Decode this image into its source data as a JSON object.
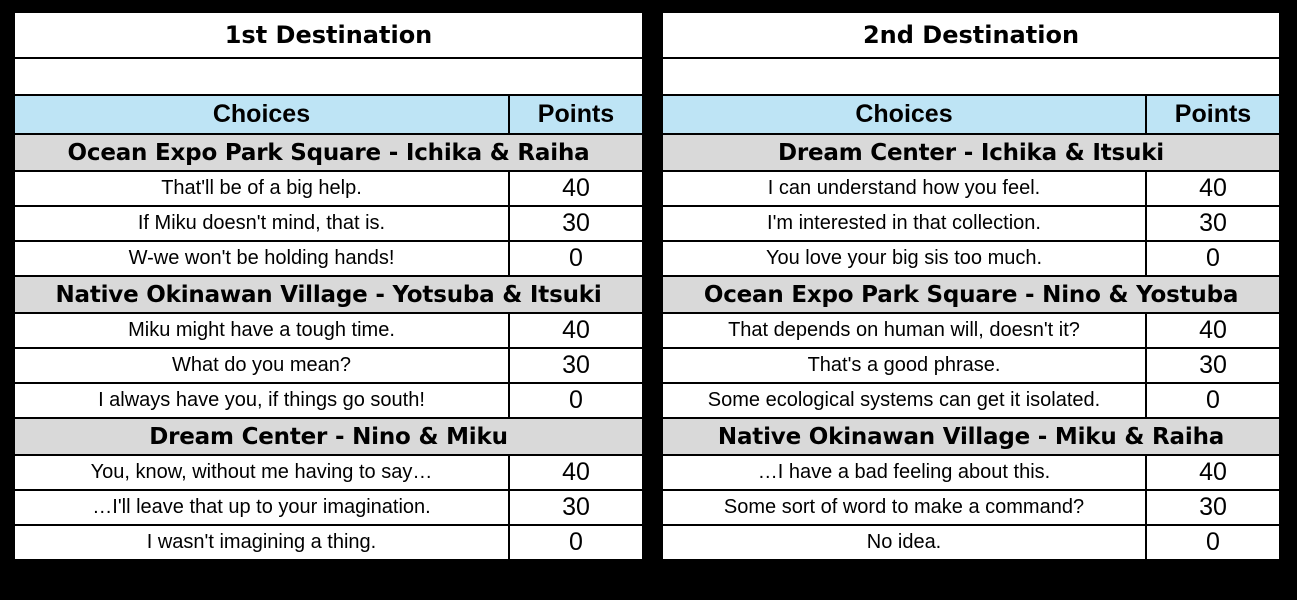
{
  "header_label_choices": "Choices",
  "header_label_points": "Points",
  "tables": [
    {
      "title": "1st Destination",
      "sections": [
        {
          "name": "Ocean Expo Park Square - Ichika & Raiha",
          "choices": [
            {
              "text": "That'll be of a big help.",
              "points": "40"
            },
            {
              "text": "If Miku doesn't mind, that is.",
              "points": "30"
            },
            {
              "text": "W-we won't be holding hands!",
              "points": "0"
            }
          ]
        },
        {
          "name": "Native Okinawan Village - Yotsuba & Itsuki",
          "choices": [
            {
              "text": "Miku might have a tough time.",
              "points": "40"
            },
            {
              "text": "What do you mean?",
              "points": "30"
            },
            {
              "text": "I always have you, if things go south!",
              "points": "0"
            }
          ]
        },
        {
          "name": "Dream Center - Nino & Miku",
          "choices": [
            {
              "text": "You, know, without me having to say…",
              "points": "40"
            },
            {
              "text": "…I'll leave that up to your imagination.",
              "points": "30"
            },
            {
              "text": "I wasn't imagining a thing.",
              "points": "0"
            }
          ]
        }
      ]
    },
    {
      "title": "2nd Destination",
      "sections": [
        {
          "name": "Dream Center - Ichika & Itsuki",
          "choices": [
            {
              "text": "I can understand how you feel.",
              "points": "40"
            },
            {
              "text": "I'm interested in that collection.",
              "points": "30"
            },
            {
              "text": "You love your big sis too much.",
              "points": "0"
            }
          ]
        },
        {
          "name": "Ocean Expo Park Square - Nino & Yostuba",
          "choices": [
            {
              "text": "That depends on human will, doesn't it?",
              "points": "40"
            },
            {
              "text": "That's a good phrase.",
              "points": "30"
            },
            {
              "text": "Some ecological systems can get it isolated.",
              "points": "0"
            }
          ]
        },
        {
          "name": "Native Okinawan Village - Miku & Raiha",
          "choices": [
            {
              "text": "…I have a bad feeling about this.",
              "points": "40"
            },
            {
              "text": "Some sort of word to make a command?",
              "points": "30"
            },
            {
              "text": "No idea.",
              "points": "0"
            }
          ]
        }
      ]
    }
  ]
}
